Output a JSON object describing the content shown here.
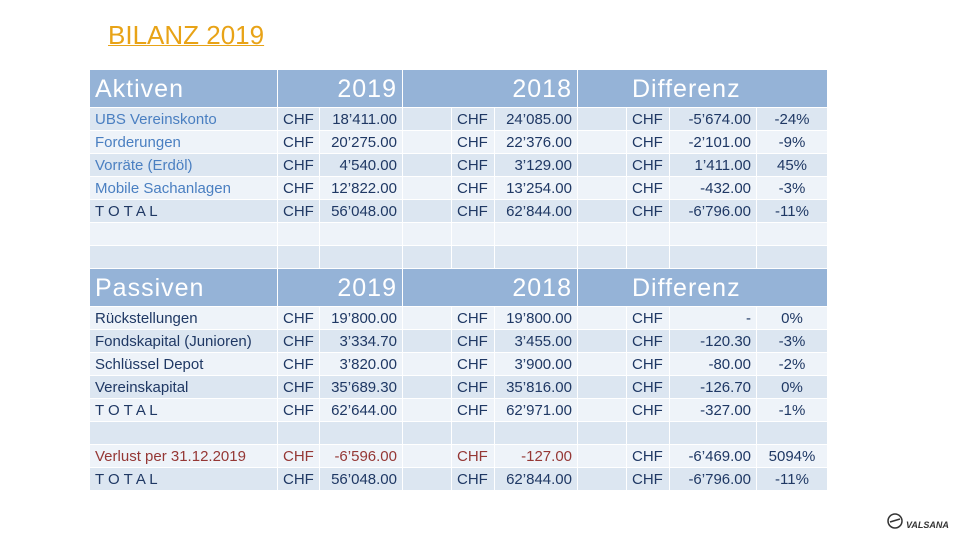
{
  "title": "BILANZ 2019",
  "sections": [
    {
      "header": [
        "Aktiven",
        "2019",
        "2018",
        "Differenz"
      ],
      "rows": [
        [
          "UBS Vereinskonto",
          "CHF",
          "18’411.00",
          "CHF",
          "24’085.00",
          "CHF",
          "-5’674.00",
          "-24%"
        ],
        [
          "Forderungen",
          "CHF",
          "20’275.00",
          "CHF",
          "22’376.00",
          "CHF",
          "-2’101.00",
          "-9%"
        ],
        [
          "Vorräte (Erdöl)",
          "CHF",
          "4’540.00",
          "CHF",
          "3’129.00",
          "CHF",
          "1’411.00",
          "45%"
        ],
        [
          "Mobile Sachanlagen",
          "CHF",
          "12’822.00",
          "CHF",
          "13’254.00",
          "CHF",
          "-432.00",
          "-3%"
        ],
        [
          "T O T A L",
          "CHF",
          "56’048.00",
          "CHF",
          "62’844.00",
          "CHF",
          "-6’796.00",
          "-11%"
        ]
      ]
    },
    {
      "header": [
        "Passiven",
        "2019",
        "2018",
        "Differenz"
      ],
      "rows": [
        [
          "Rückstellungen",
          "CHF",
          "19’800.00",
          "CHF",
          "19’800.00",
          "CHF",
          "-",
          "0%"
        ],
        [
          "Fondskapital (Junioren)",
          "CHF",
          "3’334.70",
          "CHF",
          "3’455.00",
          "CHF",
          "-120.30",
          "-3%"
        ],
        [
          "Schlüssel Depot",
          "CHF",
          "3’820.00",
          "CHF",
          "3’900.00",
          "CHF",
          "-80.00",
          "-2%"
        ],
        [
          "Vereinskapital",
          "CHF",
          "35’689.30",
          "CHF",
          "35’816.00",
          "CHF",
          "-126.70",
          "0%"
        ],
        [
          "T O T A L",
          "CHF",
          "62’644.00",
          "CHF",
          "62’971.00",
          "CHF",
          "-327.00",
          "-1%"
        ]
      ]
    },
    {
      "rows": [
        [
          "Verlust per  31.12.2019",
          "CHF",
          "-6’596.00",
          "CHF",
          "-127.00",
          "CHF",
          "-6’469.00",
          "5094%"
        ],
        [
          "T O T A L",
          "CHF",
          "56’048.00",
          "CHF",
          "62’844.00",
          "CHF",
          "-6’796.00",
          "-11%"
        ]
      ]
    }
  ],
  "logo": "VALSANA"
}
